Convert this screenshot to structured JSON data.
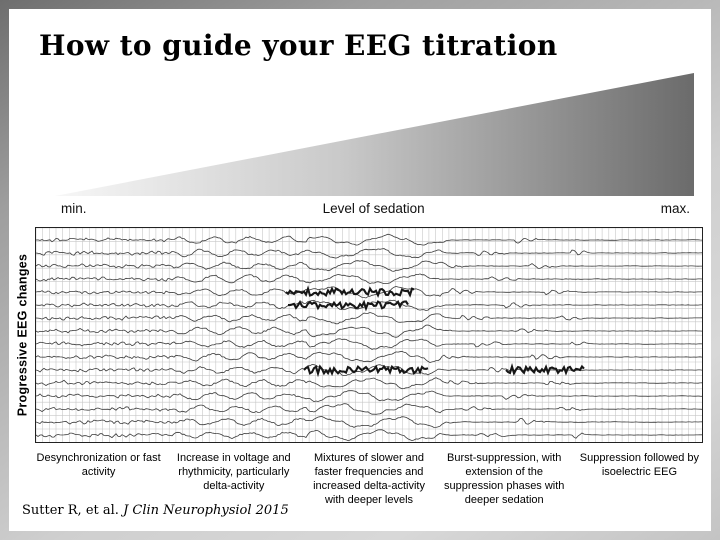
{
  "slide": {
    "title": "How to guide your EEG titration",
    "citation": {
      "authors": "Sutter R, et al.",
      "journal": "J Clin Neurophysiol 2015"
    }
  },
  "figure": {
    "sedation_axis": {
      "min_label": "min.",
      "center_label": "Level of sedation",
      "max_label": "max."
    },
    "y_axis_label": "Progressive EEG changes",
    "stage_captions": [
      "Desynchronization or fast activity",
      "Increase in voltage and rhythmicity, particularly delta-activity",
      "Mixtures of slower and faster frequencies and increased delta-activity with deeper levels",
      "Burst-suppression, with extension of the suppression phases with deeper sedation",
      "Suppression followed by isoelectric EEG"
    ],
    "colors": {
      "wedge_light": "#f7f7f7",
      "wedge_mid": "#c9c9c9",
      "wedge_dark": "#6b6b6b",
      "grid": "#c7c7c7",
      "trace": "#3a3a3a",
      "trace_bold": "#161616"
    }
  }
}
